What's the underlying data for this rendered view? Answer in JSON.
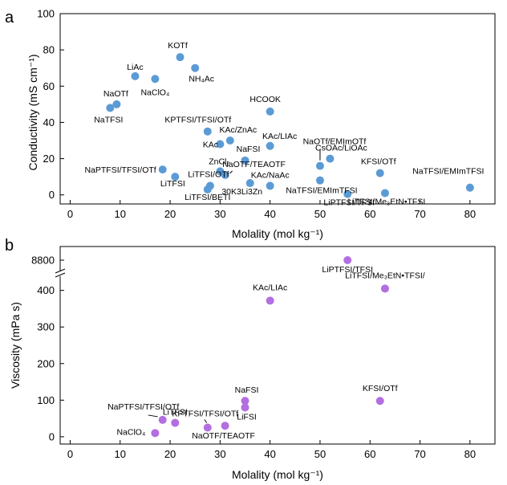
{
  "chart_data": [
    {
      "panel_label": "a",
      "type": "scatter",
      "xlabel": "Molality (mol kg⁻¹)",
      "ylabel": "Conductivity (mS cm⁻¹)",
      "xlim": [
        -2,
        85
      ],
      "ylim": [
        -5,
        100
      ],
      "xticks": [
        0,
        10,
        20,
        30,
        40,
        50,
        60,
        70,
        80
      ],
      "yticks": [
        0,
        20,
        40,
        60,
        80,
        100
      ],
      "color": "#5b9bd5",
      "points": [
        {
          "x": 22,
          "y": 76,
          "label": "KOTf"
        },
        {
          "x": 25,
          "y": 70,
          "label": "NH₄Ac"
        },
        {
          "x": 13,
          "y": 65.5,
          "label": "LiAc"
        },
        {
          "x": 17,
          "y": 64,
          "label": "NaClO₄"
        },
        {
          "x": 9.3,
          "y": 50,
          "label": "NaOTf"
        },
        {
          "x": 8,
          "y": 48,
          "label": "NaTFSI"
        },
        {
          "x": 40,
          "y": 46,
          "label": "HCOOK"
        },
        {
          "x": 27.5,
          "y": 35,
          "label": "KPTFSI/TFSI/OTf"
        },
        {
          "x": 32,
          "y": 30,
          "label": "KAc/ZnAc"
        },
        {
          "x": 30,
          "y": 28,
          "label": "KAc"
        },
        {
          "x": 40,
          "y": 27,
          "label": "KAc/LIAc"
        },
        {
          "x": 52,
          "y": 20,
          "label": "CsOAc/LiOAc"
        },
        {
          "x": 35,
          "y": 19,
          "label": "NaFSI"
        },
        {
          "x": 50,
          "y": 16,
          "label": "NaOTf/EMImOTf"
        },
        {
          "x": 18.5,
          "y": 14,
          "label": "NaPTFSI/TFSI/OTf"
        },
        {
          "x": 30,
          "y": 13,
          "label": "ZnCl₂"
        },
        {
          "x": 62,
          "y": 12,
          "label": "KFSI/OTf"
        },
        {
          "x": 31,
          "y": 11,
          "label": "NaOTF/TEAOTF"
        },
        {
          "x": 21,
          "y": 10,
          "label": "LiTFSI"
        },
        {
          "x": 28,
          "y": 5,
          "label": "LiTFSI/OTf"
        },
        {
          "x": 50,
          "y": 8,
          "label": "NaTFSI/EMImTFSI"
        },
        {
          "x": 36,
          "y": 6.5,
          "label": "30K3Li3Zn"
        },
        {
          "x": 40,
          "y": 5,
          "label": "KAc/NaAc"
        },
        {
          "x": 27.5,
          "y": 3,
          "label": "LiTFSI/BETI"
        },
        {
          "x": 80,
          "y": 4,
          "label": "NaTFSI/EMImTFSI"
        },
        {
          "x": 55.5,
          "y": 0.5,
          "label": "LiPTFSI/TFSI"
        },
        {
          "x": 63,
          "y": 1,
          "label": "LiTFSI/Me₃EtN•TFSI"
        }
      ]
    },
    {
      "panel_label": "b",
      "type": "scatter",
      "xlabel": "Molality (mol kg⁻¹)",
      "ylabel": "Viscosity (mPa s)",
      "xlim": [
        -2,
        85
      ],
      "ylim": [
        -20,
        520
      ],
      "axis_break": {
        "between": [
          450,
          8800
        ]
      },
      "xticks": [
        0,
        10,
        20,
        30,
        40,
        50,
        60,
        70,
        80
      ],
      "yticks": [
        0,
        100,
        200,
        300,
        400,
        8800
      ],
      "color": "#b36ee0",
      "points": [
        {
          "x": 55.5,
          "y": 8800,
          "label": "LiPTFSI/TFSI"
        },
        {
          "x": 63,
          "y": 405,
          "label": "LiTFSI/Me₃EtN•TFSI/"
        },
        {
          "x": 40,
          "y": 372,
          "label": "KAc/LIAc"
        },
        {
          "x": 62,
          "y": 98,
          "label": "KFSI/OTf"
        },
        {
          "x": 35,
          "y": 98,
          "label": "NaFSI"
        },
        {
          "x": 35,
          "y": 80,
          "label": "LiFSI"
        },
        {
          "x": 18.5,
          "y": 46,
          "label": "NaPTFSI/TFSI/OTf"
        },
        {
          "x": 21,
          "y": 38,
          "label": "LiTFSI"
        },
        {
          "x": 27.5,
          "y": 25,
          "label": "KPTFSI/TFSI/OTf"
        },
        {
          "x": 31,
          "y": 30,
          "label": "NaOTF/TEAOTF"
        },
        {
          "x": 17,
          "y": 10,
          "label": "NaClO₄"
        }
      ]
    }
  ]
}
